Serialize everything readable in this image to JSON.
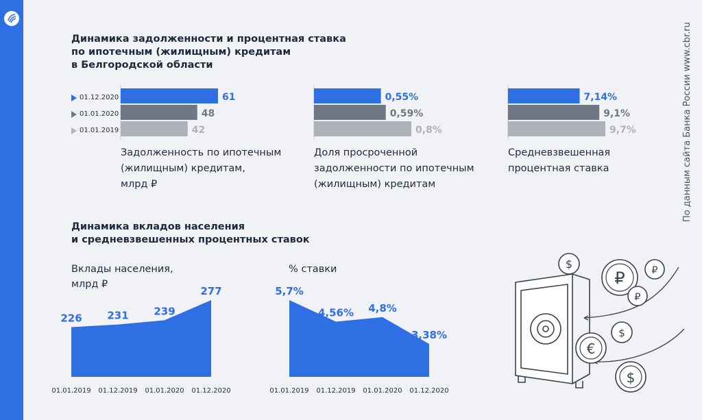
{
  "colors": {
    "accent": "#2f6fe4",
    "dark_gray": "#707784",
    "light_gray": "#adb1b8",
    "text": "#1e2a3c",
    "background": "#f1f2f5"
  },
  "section1_title": "Динамика задолженности и процентная ставка\nпо ипотечным (жилищным) кредитам\nв Белгородской области",
  "section2_title": "Динамика вкладов населения\nи средневзвешенных процентных ставок",
  "source": "По данным сайта Банка России www.cbr.ru",
  "legend": [
    "01.12.2020",
    "01.01.2020",
    "01.01.2019"
  ],
  "chart_data": [
    {
      "type": "bar",
      "orientation": "horizontal",
      "categories": [
        "01.12.2020",
        "01.01.2020",
        "01.01.2019"
      ],
      "values": [
        61,
        48,
        42
      ],
      "value_labels": [
        "61",
        "48",
        "42"
      ],
      "title": "Задолженность по ипотечным\n(жилищным) кредитам,\nмлрд ₽"
    },
    {
      "type": "bar",
      "orientation": "horizontal",
      "categories": [
        "01.12.2020",
        "01.01.2020",
        "01.01.2019"
      ],
      "values": [
        0.55,
        0.59,
        0.8
      ],
      "value_labels": [
        "0,55%",
        "0,59%",
        "0,8%"
      ],
      "title": "Доля просроченной\nзадолженности по ипотечным\n(жилищным) кредитам"
    },
    {
      "type": "bar",
      "orientation": "horizontal",
      "categories": [
        "01.12.2020",
        "01.01.2020",
        "01.01.2019"
      ],
      "values": [
        7.14,
        9.1,
        9.7
      ],
      "value_labels": [
        "7,14%",
        "9,1%",
        "9,7%"
      ],
      "title": "Средневзвешенная\nпроцентная ставка"
    },
    {
      "type": "area",
      "title": "Вклады населения,\nмлрд ₽",
      "x": [
        "01.01.2019",
        "01.12.2019",
        "01.01.2020",
        "01.12.2020"
      ],
      "values": [
        226,
        231,
        239,
        277
      ],
      "value_labels": [
        "226",
        "231",
        "239",
        "277"
      ]
    },
    {
      "type": "area",
      "title": "% ставки",
      "x": [
        "01.01.2019",
        "01.12.2019",
        "01.01.2020",
        "01.12.2020"
      ],
      "values": [
        5.7,
        4.56,
        4.8,
        3.38
      ],
      "value_labels": [
        "5,7%",
        "4,56%",
        "4,8%",
        "3,38%"
      ]
    }
  ]
}
